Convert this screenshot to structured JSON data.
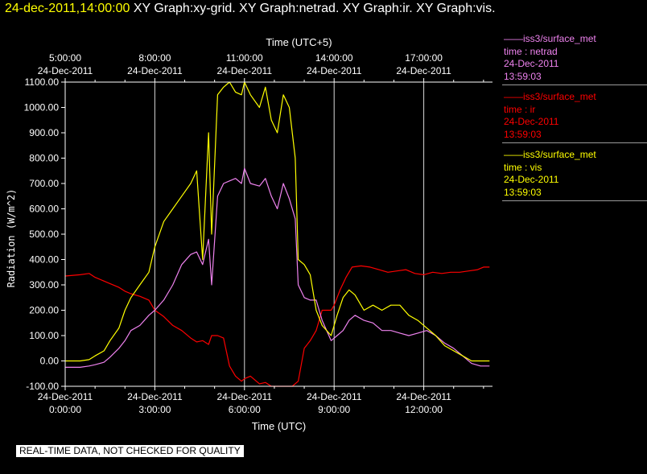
{
  "header": {
    "datetime": "24-dec-2011,14:00:00",
    "graph_titles": "XY Graph:xy-grid.  XY Graph:netrad.  XY Graph:ir.  XY Graph:vis."
  },
  "legend": [
    {
      "source": "iss3/surface_met",
      "variable": "time : netrad",
      "date": "24-Dec-2011",
      "time": "13:59:03",
      "color": "#ee82ee"
    },
    {
      "source": "iss3/surface_met",
      "variable": "time : ir",
      "date": "24-Dec-2011",
      "time": "13:59:03",
      "color": "#ff0000"
    },
    {
      "source": "iss3/surface_met",
      "variable": "time : vis",
      "date": "24-Dec-2011",
      "time": "13:59:03",
      "color": "#ffff00"
    }
  ],
  "disclaimer": "REAL-TIME DATA, NOT CHECKED FOR QUALITY",
  "chart_data": {
    "type": "line",
    "xlabel_bottom": "Time (UTC)",
    "xlabel_top": "Time (UTC+5)",
    "ylabel": "Radiation (W/m^2)",
    "xlim": [
      0,
      14.3
    ],
    "ylim": [
      -100,
      1100
    ],
    "grid": true,
    "y_ticks": [
      -100,
      0,
      100,
      200,
      300,
      400,
      500,
      600,
      700,
      800,
      900,
      1000,
      1100
    ],
    "y_tick_labels": [
      "-100.00",
      "0.00",
      "100.00",
      "200.00",
      "300.00",
      "400.00",
      "500.00",
      "600.00",
      "700.00",
      "800.00",
      "900.00",
      "1000.00",
      "1100.00"
    ],
    "x_ticks_bottom": [
      {
        "x": 0,
        "date": "24-Dec-2011",
        "time": "0:00:00"
      },
      {
        "x": 3,
        "date": "24-Dec-2011",
        "time": "3:00:00"
      },
      {
        "x": 6,
        "date": "24-Dec-2011",
        "time": "6:00:00"
      },
      {
        "x": 9,
        "date": "24-Dec-2011",
        "time": "9:00:00"
      },
      {
        "x": 12,
        "date": "24-Dec-2011",
        "time": "12:00:00"
      }
    ],
    "x_ticks_top": [
      {
        "x": 0,
        "time": "5:00:00",
        "date": "24-Dec-2011"
      },
      {
        "x": 3,
        "time": "8:00:00",
        "date": "24-Dec-2011"
      },
      {
        "x": 6,
        "time": "11:00:00",
        "date": "24-Dec-2011"
      },
      {
        "x": 9,
        "time": "14:00:00",
        "date": "24-Dec-2011"
      },
      {
        "x": 12,
        "time": "17:00:00",
        "date": "24-Dec-2011"
      }
    ],
    "series": [
      {
        "name": "time : ir",
        "color": "#ff0000",
        "x": [
          0,
          0.5,
          0.8,
          1.0,
          1.3,
          1.5,
          1.8,
          2.0,
          2.2,
          2.5,
          2.8,
          3.0,
          3.3,
          3.6,
          3.9,
          4.2,
          4.4,
          4.6,
          4.8,
          4.9,
          5.1,
          5.3,
          5.5,
          5.7,
          5.9,
          6.0,
          6.2,
          6.5,
          6.7,
          6.9,
          7.1,
          7.3,
          7.4,
          7.5,
          7.6,
          7.8,
          8.0,
          8.2,
          8.4,
          8.6,
          8.9,
          9.0,
          9.1,
          9.2,
          9.4,
          9.6,
          9.9,
          10.2,
          10.5,
          10.8,
          11.1,
          11.4,
          11.7,
          12.0,
          12.3,
          12.6,
          12.9,
          13.2,
          13.5,
          13.8,
          14.0,
          14.2
        ],
        "y": [
          335,
          340,
          345,
          330,
          315,
          305,
          290,
          275,
          265,
          255,
          240,
          200,
          175,
          140,
          120,
          90,
          75,
          80,
          65,
          100,
          100,
          90,
          -20,
          -60,
          -80,
          -70,
          -60,
          -90,
          -85,
          -100,
          -100,
          -100,
          -100,
          -100,
          -100,
          -80,
          50,
          80,
          120,
          200,
          200,
          220,
          250,
          280,
          330,
          370,
          375,
          370,
          360,
          350,
          355,
          360,
          345,
          340,
          350,
          345,
          350,
          350,
          355,
          360,
          370,
          370
        ]
      },
      {
        "name": "time : netrad",
        "color": "#ee82ee",
        "x": [
          0,
          0.5,
          0.8,
          1.0,
          1.3,
          1.5,
          1.8,
          2.0,
          2.2,
          2.5,
          2.8,
          3.0,
          3.3,
          3.6,
          3.9,
          4.2,
          4.4,
          4.6,
          4.8,
          4.9,
          5.1,
          5.3,
          5.5,
          5.7,
          5.9,
          6.0,
          6.2,
          6.5,
          6.7,
          6.9,
          7.1,
          7.3,
          7.5,
          7.7,
          7.8,
          8.0,
          8.2,
          8.4,
          8.6,
          8.9,
          9.1,
          9.3,
          9.5,
          9.7,
          10.0,
          10.3,
          10.6,
          10.9,
          11.2,
          11.5,
          11.8,
          12.1,
          12.4,
          12.7,
          13.0,
          13.3,
          13.6,
          13.9,
          14.2
        ],
        "y": [
          -25,
          -25,
          -20,
          -15,
          -5,
          15,
          50,
          80,
          120,
          140,
          180,
          200,
          240,
          300,
          380,
          420,
          430,
          380,
          480,
          300,
          650,
          700,
          710,
          720,
          700,
          760,
          700,
          690,
          720,
          650,
          600,
          700,
          640,
          560,
          300,
          250,
          240,
          240,
          160,
          80,
          100,
          120,
          160,
          180,
          160,
          150,
          120,
          120,
          110,
          100,
          110,
          120,
          100,
          70,
          50,
          20,
          -10,
          -20,
          -20
        ]
      },
      {
        "name": "time : vis",
        "color": "#ffff00",
        "x": [
          0,
          0.5,
          0.8,
          1.0,
          1.3,
          1.5,
          1.8,
          2.0,
          2.2,
          2.5,
          2.8,
          3.0,
          3.3,
          3.6,
          3.9,
          4.2,
          4.4,
          4.6,
          4.8,
          4.9,
          5.1,
          5.3,
          5.5,
          5.7,
          5.9,
          6.0,
          6.2,
          6.5,
          6.7,
          6.9,
          7.1,
          7.3,
          7.5,
          7.7,
          7.8,
          8.0,
          8.2,
          8.4,
          8.6,
          8.9,
          9.1,
          9.3,
          9.5,
          9.7,
          10.0,
          10.3,
          10.6,
          10.9,
          11.2,
          11.5,
          11.8,
          12.1,
          12.4,
          12.7,
          13.0,
          13.3,
          13.6,
          13.9,
          14.2
        ],
        "y": [
          0,
          0,
          5,
          20,
          40,
          80,
          130,
          200,
          250,
          300,
          350,
          450,
          550,
          600,
          650,
          700,
          750,
          400,
          900,
          500,
          1050,
          1080,
          1100,
          1060,
          1050,
          1100,
          1050,
          1000,
          1080,
          950,
          900,
          1050,
          1000,
          800,
          400,
          380,
          340,
          200,
          140,
          100,
          180,
          250,
          280,
          260,
          200,
          220,
          200,
          220,
          220,
          180,
          160,
          130,
          100,
          60,
          40,
          20,
          0,
          0,
          0
        ]
      }
    ]
  }
}
